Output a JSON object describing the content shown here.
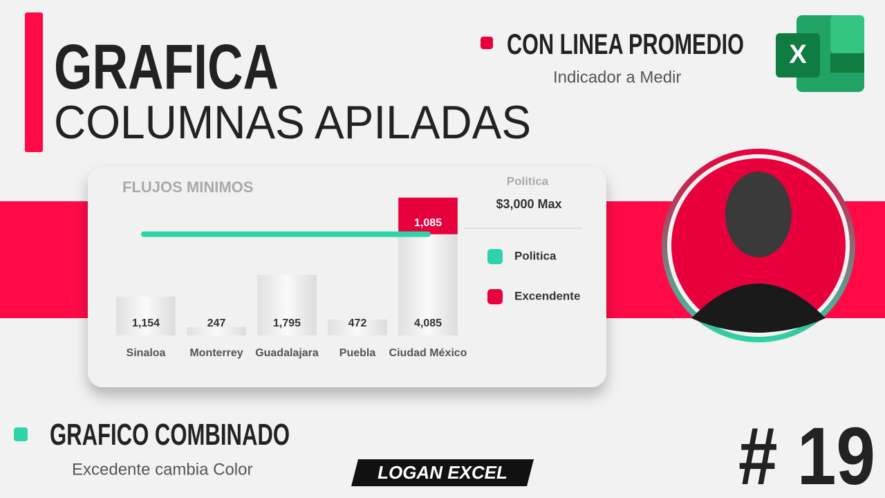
{
  "page": {
    "title": "GRAFICA",
    "subtitle": "COLUMNAS APILADAS",
    "tag_top": "CON LINEA PROMEDIO",
    "tag_top_note": "Indicador a Medir",
    "tag_bottom": "GRAFICO COMBINADO",
    "tag_bottom_note": "Excedente cambia Color",
    "brand": "LOGAN EXCEL",
    "episode": "# 19",
    "app_icon": "X"
  },
  "chart_data": {
    "type": "bar",
    "stacked": true,
    "title": "FLUJOS MINIMOS",
    "categories": [
      "Sinaloa",
      "Monterrey",
      "Guadalajara",
      "Puebla",
      "Ciudad México"
    ],
    "ylim": [
      0,
      4100
    ],
    "series": [
      {
        "color": "#eeeeee",
        "values": [
          1154,
          247,
          1795,
          472,
          3000
        ]
      },
      {
        "name": "Excendente",
        "color": "#e8003d",
        "values": [
          null,
          null,
          null,
          null,
          1085
        ],
        "value_labels": [
          null,
          null,
          null,
          null,
          "1,085"
        ]
      }
    ],
    "totals": {
      "values": [
        1154,
        247,
        1795,
        472,
        4085
      ],
      "value_labels": [
        "1,154",
        "247",
        "1,795",
        "472",
        "4,085"
      ]
    },
    "policy": {
      "name": "Politica",
      "value": 3000,
      "label": "$3,000 Max",
      "color": "#2ed3a8"
    }
  }
}
